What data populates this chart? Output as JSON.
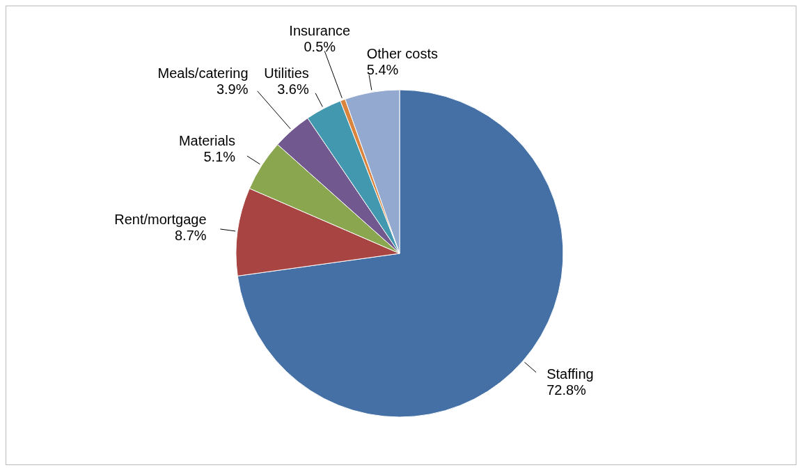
{
  "chart_data": {
    "type": "pie",
    "categories": [
      "Staffing",
      "Rent/mortgage",
      "Materials",
      "Meals/catering",
      "Utilities",
      "Insurance",
      "Other costs"
    ],
    "values": [
      72.8,
      8.7,
      5.1,
      3.9,
      3.6,
      0.5,
      5.4
    ],
    "value_labels": [
      "72.8%",
      "8.7%",
      "5.1%",
      "3.9%",
      "3.6%",
      "0.5%",
      "5.4%"
    ],
    "colors": [
      "#4470a5",
      "#a84542",
      "#8aa64f",
      "#71588f",
      "#4198af",
      "#db843d",
      "#93a9cf"
    ],
    "legend": false
  }
}
